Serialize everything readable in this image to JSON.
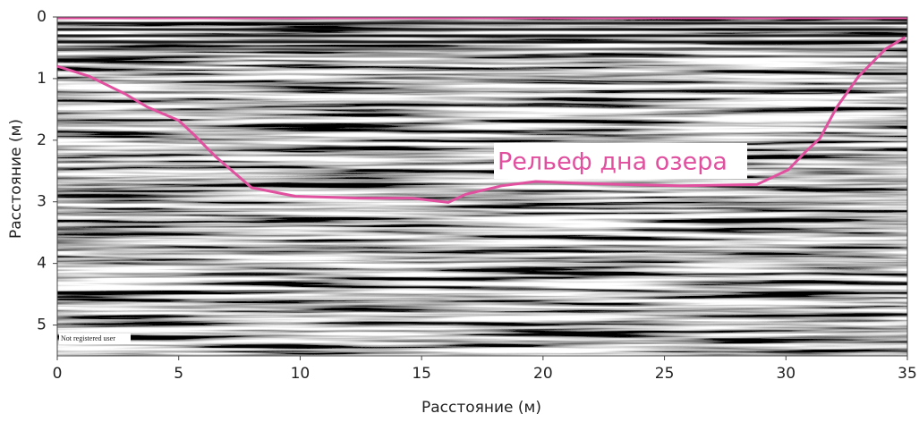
{
  "chart_data": {
    "type": "line",
    "x_label": "Расстояние (м)",
    "y_label": "Расстояние (м)",
    "annotation": "Рельеф дна озера",
    "watermark": "Not registered user",
    "xlim": [
      0,
      35
    ],
    "xticks": [
      0,
      5,
      10,
      15,
      20,
      25,
      30,
      35
    ],
    "ylim": [
      0,
      5.5
    ],
    "yticks": [
      0,
      1,
      2,
      3,
      4,
      5
    ],
    "y_inverted": true,
    "series": [
      {
        "color": "#e0509f",
        "x": [
          0,
          1.3,
          2.8,
          3.7,
          5.0,
          5.6,
          6.5,
          8.0,
          9.8,
          12.4,
          14.6,
          16.1,
          16.8,
          18.3,
          19.7,
          21.6,
          23.4,
          25.6,
          28.8,
          30.1,
          30.8,
          31.4,
          32.1,
          33.0,
          34.1,
          34.9
        ],
        "values": [
          0.8,
          0.96,
          1.25,
          1.46,
          1.68,
          1.9,
          2.26,
          2.77,
          2.91,
          2.94,
          2.94,
          3.01,
          2.88,
          2.74,
          2.67,
          2.7,
          2.72,
          2.74,
          2.72,
          2.48,
          2.19,
          1.97,
          1.46,
          0.96,
          0.52,
          0.33
        ]
      }
    ]
  }
}
